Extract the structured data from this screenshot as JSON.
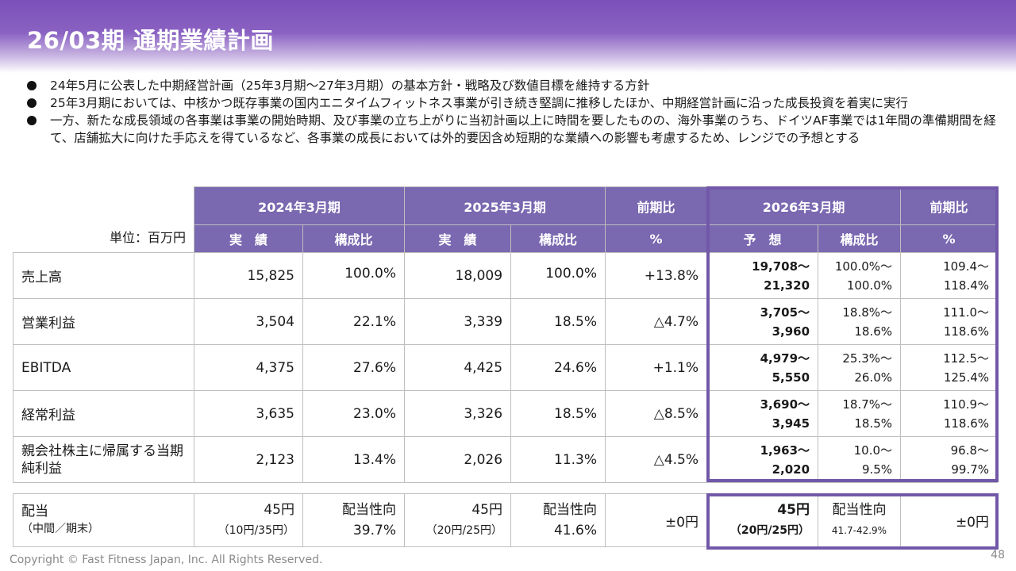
{
  "title": "26/03期 通期業績計画",
  "bullets": [
    "24年5月に公表した中期経営計画（25年3月期～27年3月期）の基本方針・戦略及び数値目標を維持する方針",
    "25年3月期においては、中核かつ既存事業の国内エニタイムフィットネス事業が引き続き堅調に推移したほか、中期経営計画に沿った成長投資を着実に実行",
    "一方、新たな成長領域の各事業は事業の開始時期、及び事業の立ち上がりに当初計画以上に時間を要したものの、海外事業のうち、ドイツAF事業では1年間の準備期間を経て、店舗拡大に向けた手応えを得ているなど、各事業の成長においては外的要因含め短期的な業績への影響も考慮するため、レンジでの予想とする"
  ],
  "table": {
    "unit": "単位：百万円",
    "periods": [
      "2024年3月期",
      "2025年3月期",
      "前期比",
      "2026年3月期",
      "前期比"
    ],
    "subheads": [
      "実　績",
      "構成比",
      "実　績",
      "構成比",
      "%",
      "予　想",
      "構成比",
      "%"
    ],
    "rows": [
      {
        "label": "売上高",
        "a24": "15,825",
        "c24": "100.0%",
        "a25": "18,009",
        "c25": "100.0%",
        "yoy": "+13.8%",
        "f_lo": "19,708～",
        "f_hi": "21,320",
        "fc_lo": "100.0%～",
        "fc_hi": "100.0%",
        "fy_lo": "109.4～",
        "fy_hi": "118.4%"
      },
      {
        "label": "営業利益",
        "a24": "3,504",
        "c24": "22.1%",
        "a25": "3,339",
        "c25": "18.5%",
        "yoy": "△4.7%",
        "f_lo": "3,705～",
        "f_hi": "3,960",
        "fc_lo": "18.8%～",
        "fc_hi": "18.6%",
        "fy_lo": "111.0～",
        "fy_hi": "118.6%"
      },
      {
        "label": "EBITDA",
        "a24": "4,375",
        "c24": "27.6%",
        "a25": "4,425",
        "c25": "24.6%",
        "yoy": "+1.1%",
        "f_lo": "4,979～",
        "f_hi": "5,550",
        "fc_lo": "25.3%～",
        "fc_hi": "26.0%",
        "fy_lo": "112.5～",
        "fy_hi": "125.4%"
      },
      {
        "label": "経常利益",
        "a24": "3,635",
        "c24": "23.0%",
        "a25": "3,326",
        "c25": "18.5%",
        "yoy": "△8.5%",
        "f_lo": "3,690～",
        "f_hi": "3,945",
        "fc_lo": "18.7%～",
        "fc_hi": "18.5%",
        "fy_lo": "110.9～",
        "fy_hi": "118.6%"
      },
      {
        "label": "親会社株主に帰属する当期純利益",
        "a24": "2,123",
        "c24": "13.4%",
        "a25": "2,026",
        "c25": "11.3%",
        "yoy": "△4.5%",
        "f_lo": "1,963～",
        "f_hi": "2,020",
        "fc_lo": "10.0～",
        "fc_hi": "9.5%",
        "fy_lo": "96.8～",
        "fy_hi": "99.7%"
      }
    ],
    "dividend": {
      "label": "配当",
      "sub": "（中間／期末）",
      "a24": "45円",
      "a24_sub": "（10円/35円）",
      "p24_label": "配当性向",
      "p24": "39.7%",
      "a25": "45円",
      "a25_sub": "（20円/25円）",
      "p25_label": "配当性向",
      "p25": "41.6%",
      "yoy": "±0円",
      "f": "45円",
      "f_sub": "（20円/25円）",
      "pf_label": "配当性向",
      "pf": "41.7-42.9%",
      "fyoy": "±0円"
    }
  },
  "footer": "Copyright © Fast Fitness Japan, Inc. All Rights Reserved.",
  "page_number": "48"
}
